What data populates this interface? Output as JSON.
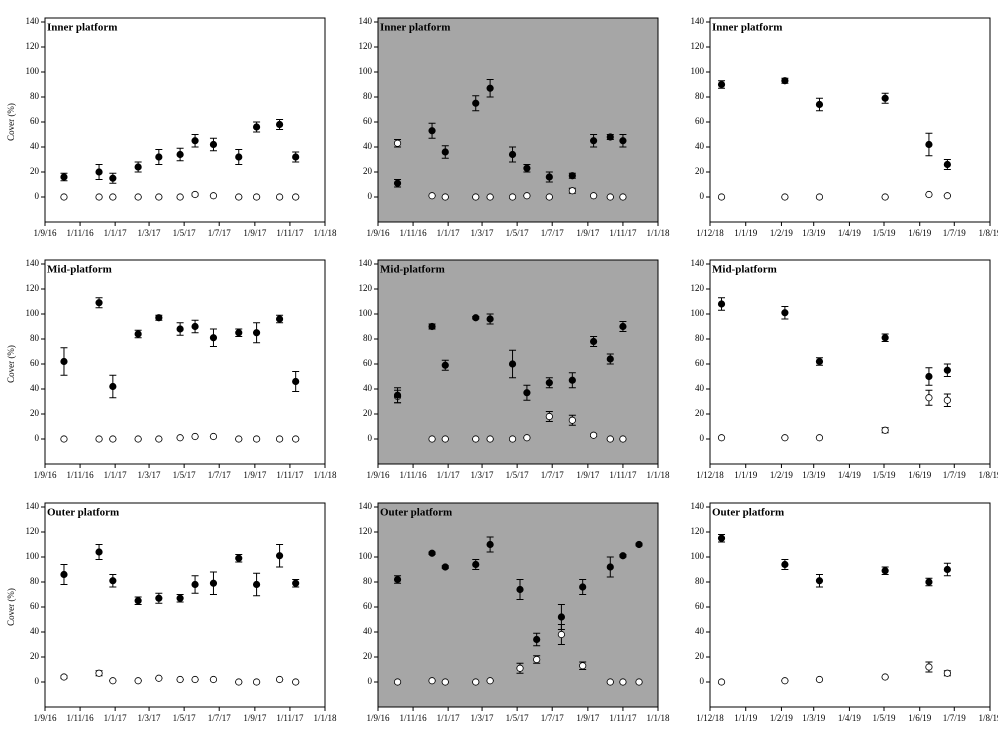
{
  "chart_data": [
    {
      "type": "scatter",
      "title": "Inner platform",
      "ylabel": "Cover (%)",
      "background": "#ffffff",
      "x": [
        "4/10/16",
        "4/12/16",
        "28/12/16",
        "10/2/17",
        "18/3/17",
        "24/4/17",
        "20/5/17",
        "21/6/17",
        "4/8/17",
        "4/9/17",
        "14/10/17",
        "11/11/17"
      ],
      "xlim": [
        "1/9/16",
        "1/1/18"
      ],
      "xticks": [
        "1/9/16",
        "1/11/16",
        "1/1/17",
        "1/3/17",
        "1/5/17",
        "1/7/17",
        "1/9/17",
        "1/11/17",
        "1/1/18"
      ],
      "ylim": [
        -20,
        140
      ],
      "yticks": [
        0,
        20,
        40,
        60,
        80,
        100,
        120,
        140
      ],
      "series": [
        {
          "color": "#000000",
          "fill": "#000000",
          "values": [
            16,
            20,
            15,
            24,
            32,
            34,
            45,
            42,
            32,
            56,
            58,
            32
          ],
          "errors": [
            3,
            6,
            4,
            4,
            6,
            5,
            5,
            5,
            6,
            4,
            4,
            4
          ]
        },
        {
          "color": "#000000",
          "fill": "#ffffff",
          "values": [
            0,
            0,
            0,
            0,
            0,
            0,
            2,
            1,
            0,
            0,
            0,
            0
          ],
          "errors": [
            0,
            0,
            0,
            0,
            0,
            0,
            1,
            0,
            0,
            0,
            0,
            0
          ]
        }
      ]
    },
    {
      "type": "scatter",
      "title": "Inner platform",
      "background": "#a6a6a6",
      "x": [
        "5/10/16",
        "4/12/16",
        "27/12/16",
        "18/2/17",
        "15/3/17",
        "23/4/17",
        "18/5/17",
        "26/6/17",
        "5/8/17",
        "11/9/17",
        "10/10/17",
        "1/11/17"
      ],
      "xlim": [
        "1/9/16",
        "1/1/18"
      ],
      "xticks": [
        "1/9/16",
        "1/11/16",
        "1/1/17",
        "1/3/17",
        "1/5/17",
        "1/7/17",
        "1/9/17",
        "1/11/17",
        "1/1/18"
      ],
      "ylim": [
        -20,
        140
      ],
      "yticks": [
        0,
        20,
        40,
        60,
        80,
        100,
        120,
        140
      ],
      "series": [
        {
          "color": "#000000",
          "fill": "#000000",
          "values": [
            11,
            53,
            36,
            75,
            87,
            34,
            23,
            16,
            17,
            45,
            48,
            45
          ],
          "errors": [
            3,
            6,
            5,
            6,
            7,
            6,
            3,
            4,
            2,
            5,
            2,
            5
          ]
        },
        {
          "color": "#000000",
          "fill": "#ffffff",
          "values": [
            43,
            1,
            0,
            0,
            0,
            0,
            1,
            0,
            5,
            1,
            0,
            0
          ],
          "errors": [
            3,
            0,
            0,
            0,
            0,
            0,
            0,
            0,
            2,
            0,
            0,
            0
          ]
        }
      ]
    },
    {
      "type": "scatter",
      "title": "Inner platform",
      "background": "#ffffff",
      "x": [
        "11/12/18",
        "4/2/19",
        "6/3/19",
        "2/5/19",
        "9/6/19",
        "25/6/19"
      ],
      "xlim": [
        "1/12/18",
        "1/8/19"
      ],
      "xticks": [
        "1/12/18",
        "1/1/19",
        "1/2/19",
        "1/3/19",
        "1/4/19",
        "1/5/19",
        "1/6/19",
        "1/7/19",
        "1/8/19"
      ],
      "ylim": [
        -20,
        140
      ],
      "yticks": [
        0,
        20,
        40,
        60,
        80,
        100,
        120,
        140
      ],
      "series": [
        {
          "color": "#000000",
          "fill": "#000000",
          "values": [
            90,
            93,
            74,
            79,
            42,
            26
          ],
          "errors": [
            3,
            2,
            5,
            4,
            9,
            4
          ]
        },
        {
          "color": "#000000",
          "fill": "#ffffff",
          "values": [
            0,
            0,
            0,
            0,
            2,
            1
          ],
          "errors": [
            0,
            0,
            0,
            0,
            0,
            0
          ]
        }
      ]
    },
    {
      "type": "scatter",
      "title": "Mid-platform",
      "ylabel": "Cover (%)",
      "background": "#ffffff",
      "x": [
        "4/10/16",
        "4/12/16",
        "28/12/16",
        "10/2/17",
        "18/3/17",
        "24/4/17",
        "20/5/17",
        "21/6/17",
        "4/8/17",
        "4/9/17",
        "14/10/17",
        "11/11/17"
      ],
      "xlim": [
        "1/9/16",
        "1/1/18"
      ],
      "xticks": [
        "1/9/16",
        "1/11/16",
        "1/1/17",
        "1/3/17",
        "1/5/17",
        "1/7/17",
        "1/9/17",
        "1/11/17",
        "1/1/18"
      ],
      "ylim": [
        -20,
        140
      ],
      "yticks": [
        0,
        20,
        40,
        60,
        80,
        100,
        120,
        140
      ],
      "series": [
        {
          "color": "#000000",
          "fill": "#000000",
          "values": [
            62,
            109,
            42,
            84,
            97,
            88,
            90,
            81,
            85,
            85,
            96,
            46
          ],
          "errors": [
            11,
            4,
            9,
            3,
            2,
            5,
            5,
            7,
            3,
            8,
            3,
            8
          ]
        },
        {
          "color": "#000000",
          "fill": "#ffffff",
          "values": [
            0,
            0,
            0,
            0,
            0,
            1,
            2,
            2,
            0,
            0,
            0,
            0
          ],
          "errors": [
            0,
            0,
            0,
            0,
            0,
            0,
            0,
            0,
            0,
            0,
            0,
            0
          ]
        }
      ]
    },
    {
      "type": "scatter",
      "title": "Mid-platform",
      "background": "#a6a6a6",
      "x": [
        "5/10/16",
        "4/12/16",
        "27/12/16",
        "18/2/17",
        "15/3/17",
        "23/4/17",
        "18/5/17",
        "26/6/17",
        "5/8/17",
        "11/9/17",
        "10/10/17",
        "1/11/17"
      ],
      "xlim": [
        "1/9/16",
        "1/1/18"
      ],
      "xticks": [
        "1/9/16",
        "1/11/16",
        "1/1/17",
        "1/3/17",
        "1/5/17",
        "1/7/17",
        "1/9/17",
        "1/11/17",
        "1/1/18"
      ],
      "ylim": [
        -20,
        140
      ],
      "yticks": [
        0,
        20,
        40,
        60,
        80,
        100,
        120,
        140
      ],
      "series": [
        {
          "color": "#000000",
          "fill": "#000000",
          "values": [
            35,
            90,
            59,
            97,
            96,
            60,
            37,
            45,
            47,
            78,
            64,
            90
          ],
          "errors": [
            6,
            2,
            4,
            1,
            4,
            11,
            6,
            4,
            6,
            4,
            4,
            4
          ]
        },
        {
          "color": "#000000",
          "fill": "#ffffff",
          "values": [
            34,
            0,
            0,
            0,
            0,
            0,
            1,
            18,
            15,
            3,
            0,
            0
          ],
          "errors": [
            5,
            0,
            0,
            0,
            0,
            0,
            0,
            4,
            4,
            1,
            0,
            0
          ]
        }
      ]
    },
    {
      "type": "scatter",
      "title": "Mid-platform",
      "background": "#ffffff",
      "x": [
        "11/12/18",
        "4/2/19",
        "6/3/19",
        "2/5/19",
        "9/6/19",
        "25/6/19"
      ],
      "xlim": [
        "1/12/18",
        "1/8/19"
      ],
      "xticks": [
        "1/12/18",
        "1/1/19",
        "1/2/19",
        "1/3/19",
        "1/4/19",
        "1/5/19",
        "1/6/19",
        "1/7/19",
        "1/8/19"
      ],
      "ylim": [
        -20,
        140
      ],
      "yticks": [
        0,
        20,
        40,
        60,
        80,
        100,
        120,
        140
      ],
      "series": [
        {
          "color": "#000000",
          "fill": "#000000",
          "values": [
            108,
            101,
            62,
            81,
            50,
            55
          ],
          "errors": [
            5,
            5,
            3,
            3,
            7,
            5
          ]
        },
        {
          "color": "#000000",
          "fill": "#ffffff",
          "values": [
            1,
            1,
            1,
            7,
            33,
            31
          ],
          "errors": [
            0,
            0,
            0,
            2,
            6,
            5
          ]
        }
      ]
    },
    {
      "type": "scatter",
      "title": "Outer platform",
      "ylabel": "Cover (%)",
      "background": "#ffffff",
      "x": [
        "4/10/16",
        "4/12/16",
        "28/12/16",
        "10/2/17",
        "18/3/17",
        "24/4/17",
        "20/5/17",
        "21/6/17",
        "4/8/17",
        "4/9/17",
        "14/10/17",
        "11/11/17"
      ],
      "xlim": [
        "1/9/16",
        "1/1/18"
      ],
      "xticks": [
        "1/9/16",
        "1/11/16",
        "1/1/17",
        "1/3/17",
        "1/5/17",
        "1/7/17",
        "1/9/17",
        "1/11/17",
        "1/1/18"
      ],
      "ylim": [
        -20,
        140
      ],
      "yticks": [
        0,
        20,
        40,
        60,
        80,
        100,
        120,
        140
      ],
      "series": [
        {
          "color": "#000000",
          "fill": "#000000",
          "values": [
            86,
            104,
            81,
            65,
            67,
            67,
            78,
            79,
            99,
            78,
            101,
            79
          ],
          "errors": [
            8,
            6,
            5,
            3,
            4,
            3,
            7,
            9,
            3,
            9,
            9,
            3
          ]
        },
        {
          "color": "#000000",
          "fill": "#ffffff",
          "values": [
            4,
            7,
            1,
            1,
            3,
            2,
            2,
            2,
            0,
            0,
            2,
            0
          ],
          "errors": [
            1,
            2,
            0,
            0,
            0,
            0,
            0,
            0,
            0,
            0,
            0,
            0
          ]
        }
      ]
    },
    {
      "type": "scatter",
      "title": "Outer platform",
      "background": "#a6a6a6",
      "x": [
        "5/10/16",
        "4/12/16",
        "27/12/16",
        "18/2/17",
        "15/3/17",
        "6/5/17",
        "4/6/17",
        "17/7/17",
        "23/8/17",
        "10/10/17",
        "1/11/17",
        "29/11/17"
      ],
      "xlim": [
        "1/9/16",
        "1/1/18"
      ],
      "xticks": [
        "1/9/16",
        "1/11/16",
        "1/1/17",
        "1/3/17",
        "1/5/17",
        "1/7/17",
        "1/9/17",
        "1/11/17",
        "1/1/18"
      ],
      "ylim": [
        -20,
        140
      ],
      "yticks": [
        0,
        20,
        40,
        60,
        80,
        100,
        120,
        140
      ],
      "series": [
        {
          "color": "#000000",
          "fill": "#000000",
          "values": [
            82,
            103,
            92,
            94,
            110,
            74,
            34,
            52,
            76,
            92,
            101,
            110
          ],
          "errors": [
            3,
            1,
            1,
            4,
            6,
            8,
            5,
            10,
            6,
            8,
            1,
            1
          ]
        },
        {
          "color": "#000000",
          "fill": "#ffffff",
          "values": [
            0,
            1,
            0,
            0,
            1,
            11,
            18,
            38,
            13,
            0,
            0,
            0
          ],
          "errors": [
            0,
            0,
            0,
            0,
            0,
            4,
            3,
            8,
            3,
            0,
            0,
            0
          ]
        }
      ]
    },
    {
      "type": "scatter",
      "title": "Outer platform",
      "background": "#ffffff",
      "x": [
        "11/12/18",
        "4/2/19",
        "6/3/19",
        "2/5/19",
        "9/6/19",
        "25/6/19"
      ],
      "xlim": [
        "1/12/18",
        "1/8/19"
      ],
      "xticks": [
        "1/12/18",
        "1/1/19",
        "1/2/19",
        "1/3/19",
        "1/4/19",
        "1/5/19",
        "1/6/19",
        "1/7/19",
        "1/8/19"
      ],
      "ylim": [
        -20,
        140
      ],
      "yticks": [
        0,
        20,
        40,
        60,
        80,
        100,
        120,
        140
      ],
      "series": [
        {
          "color": "#000000",
          "fill": "#000000",
          "values": [
            115,
            94,
            81,
            89,
            80,
            90
          ],
          "errors": [
            3,
            4,
            5,
            3,
            3,
            5
          ]
        },
        {
          "color": "#000000",
          "fill": "#ffffff",
          "values": [
            0,
            1,
            2,
            4,
            12,
            7
          ],
          "errors": [
            0,
            0,
            0,
            0,
            4,
            2
          ]
        }
      ]
    }
  ]
}
